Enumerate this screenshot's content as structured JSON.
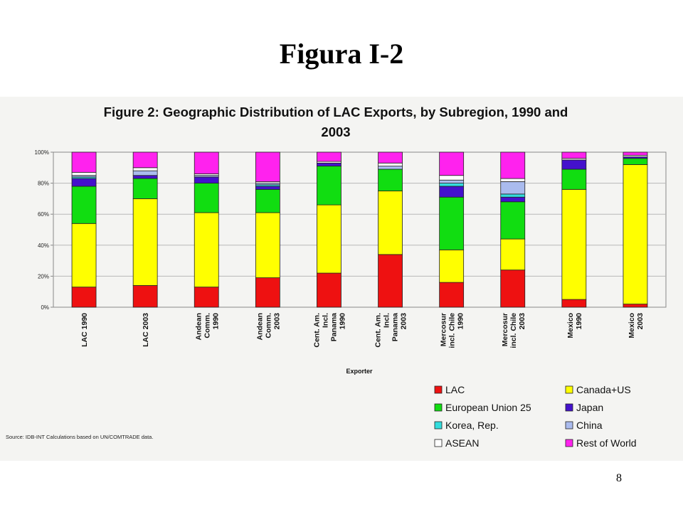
{
  "slide": {
    "title": "Figura I-2",
    "page_number": "8"
  },
  "source_note": "Source: IDB-INT Calculations based on UN/COMTRADE data.",
  "chart_data": {
    "type": "bar",
    "stacked": true,
    "title_lines": [
      "Figure 2: Geographic Distribution of LAC Exports, by Subregion, 1990 and",
      "2003"
    ],
    "xlabel": "Exporter",
    "ylabel": "",
    "ylim": [
      0,
      100
    ],
    "yticks": [
      "0%",
      "20%",
      "40%",
      "60%",
      "80%",
      "100%"
    ],
    "grid": true,
    "legend_position": "bottom-right",
    "categories": [
      [
        "LAC 1990"
      ],
      [
        "LAC 2003"
      ],
      [
        "Andean",
        "Comm.",
        "1990"
      ],
      [
        "Andean",
        "Comm.",
        "2003"
      ],
      [
        "Cent. Am.",
        "Incl.",
        "Panama",
        "1990"
      ],
      [
        "Cent. Am.",
        "Incl.",
        "Panama",
        "2003"
      ],
      [
        "Mercosur",
        "incl. Chile",
        "1990"
      ],
      [
        "Mercosur",
        "incl. Chile",
        "2003"
      ],
      [
        "Mexico",
        "1990"
      ],
      [
        "Mexico",
        "2003"
      ]
    ],
    "series": [
      {
        "name": "LAC",
        "color": "#ee1111",
        "values": [
          13,
          14,
          13,
          19,
          22,
          34,
          16,
          24,
          5,
          2
        ]
      },
      {
        "name": "Canada+US",
        "color": "#ffff00",
        "values": [
          41,
          56,
          48,
          42,
          44,
          41,
          21,
          20,
          71,
          90
        ]
      },
      {
        "name": "European Union 25",
        "color": "#11dd11",
        "values": [
          24,
          13,
          19,
          15,
          25,
          14,
          34,
          24,
          13,
          4
        ]
      },
      {
        "name": "Japan",
        "color": "#4411cc",
        "values": [
          5,
          2,
          4,
          2,
          2,
          0,
          7,
          3,
          6,
          1
        ]
      },
      {
        "name": "Korea, Rep.",
        "color": "#33dddd",
        "values": [
          1,
          0,
          0,
          1,
          0,
          0,
          2,
          2,
          0,
          0
        ]
      },
      {
        "name": "China",
        "color": "#aabbee",
        "values": [
          1,
          3,
          1,
          1,
          0,
          2,
          2,
          8,
          0,
          0
        ]
      },
      {
        "name": "ASEAN",
        "color": "#ffffff",
        "values": [
          2,
          2,
          1,
          1,
          1,
          2,
          3,
          2,
          1,
          1
        ]
      },
      {
        "name": "Rest of World",
        "color": "#ff22ee",
        "values": [
          13,
          10,
          14,
          19,
          6,
          7,
          15,
          17,
          4,
          2
        ]
      }
    ]
  }
}
